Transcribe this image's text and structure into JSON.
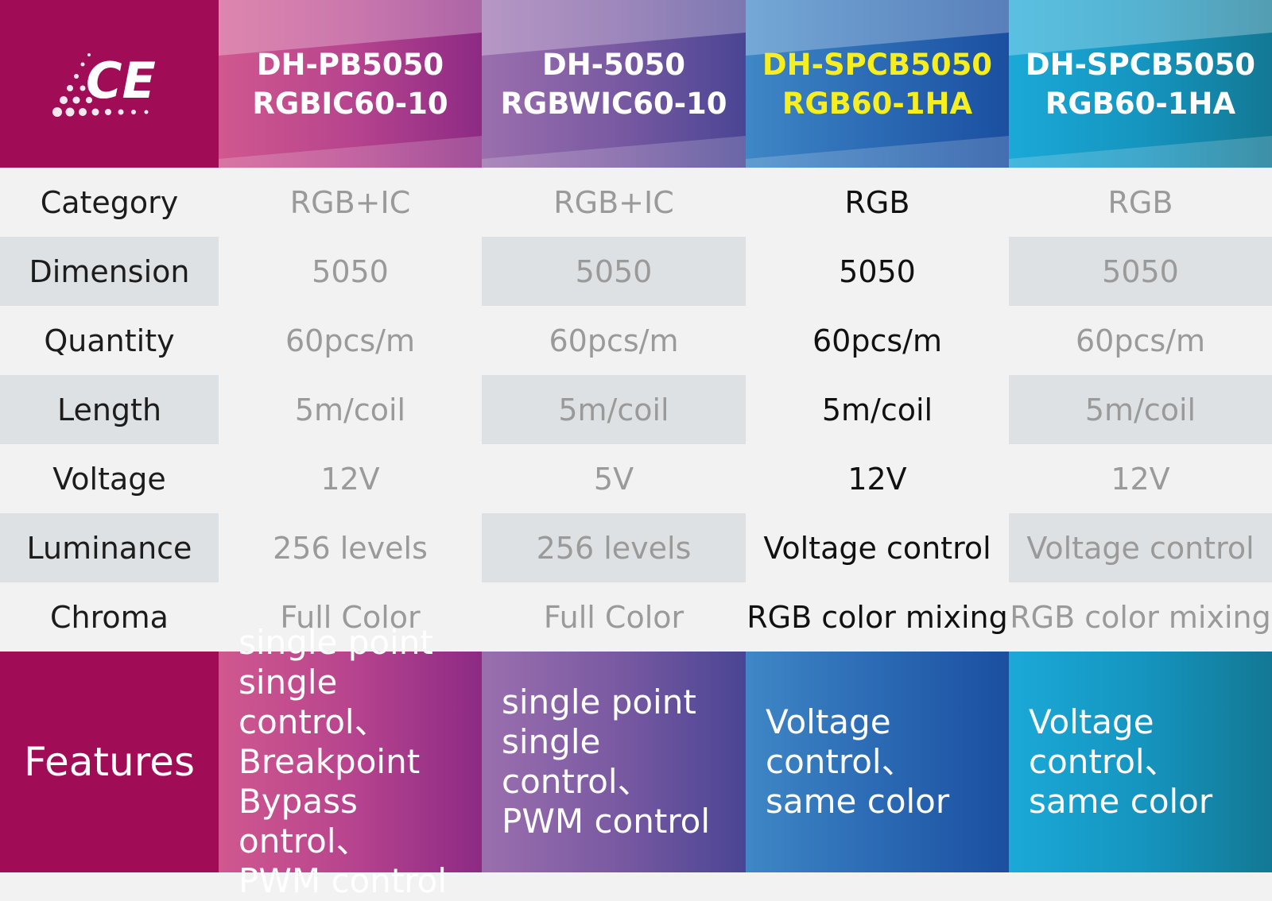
{
  "logo": {
    "text": "CE",
    "color": "#ffffff"
  },
  "colors": {
    "brand": "#a10c56",
    "highlight_text": "#f6ee1e",
    "muted_text": "#9a9a9a",
    "alt_row": "#dde1e3"
  },
  "columns": [
    {
      "model": [
        "DH-PB5050",
        "RGBIC60-10"
      ]
    },
    {
      "model": [
        "DH-5050",
        "RGBWIC60-10"
      ]
    },
    {
      "model": [
        "DH-SPCB5050",
        "RGB60-1HA"
      ],
      "highlighted": true
    },
    {
      "model": [
        "DH-SPCB5050",
        "RGB60-1HA"
      ]
    }
  ],
  "rows": [
    {
      "label": "Category",
      "values": [
        "RGB+IC",
        "RGB+IC",
        "RGB",
        "RGB"
      ]
    },
    {
      "label": "Dimension",
      "values": [
        "5050",
        "5050",
        "5050",
        "5050"
      ]
    },
    {
      "label": "Quantity",
      "values": [
        "60pcs/m",
        "60pcs/m",
        "60pcs/m",
        "60pcs/m"
      ]
    },
    {
      "label": "Length",
      "values": [
        "5m/coil",
        "5m/coil",
        "5m/coil",
        "5m/coil"
      ]
    },
    {
      "label": "Voltage",
      "values": [
        "12V",
        "5V",
        "12V",
        "12V"
      ]
    },
    {
      "label": "Luminance",
      "values": [
        "256 levels",
        "256 levels",
        "Voltage control",
        "Voltage control"
      ]
    },
    {
      "label": "Chroma",
      "values": [
        "Full Color",
        "Full Color",
        "RGB color mixing",
        "RGB color mixing"
      ]
    }
  ],
  "features": {
    "label": "Features",
    "values": [
      "single point\nsingle control、\nBreakpoint\nBypass ontrol、\nPWM control",
      "single point\nsingle control、\nPWM control",
      "Voltage\ncontrol、\nsame color",
      "Voltage\ncontrol、\nsame color"
    ]
  }
}
